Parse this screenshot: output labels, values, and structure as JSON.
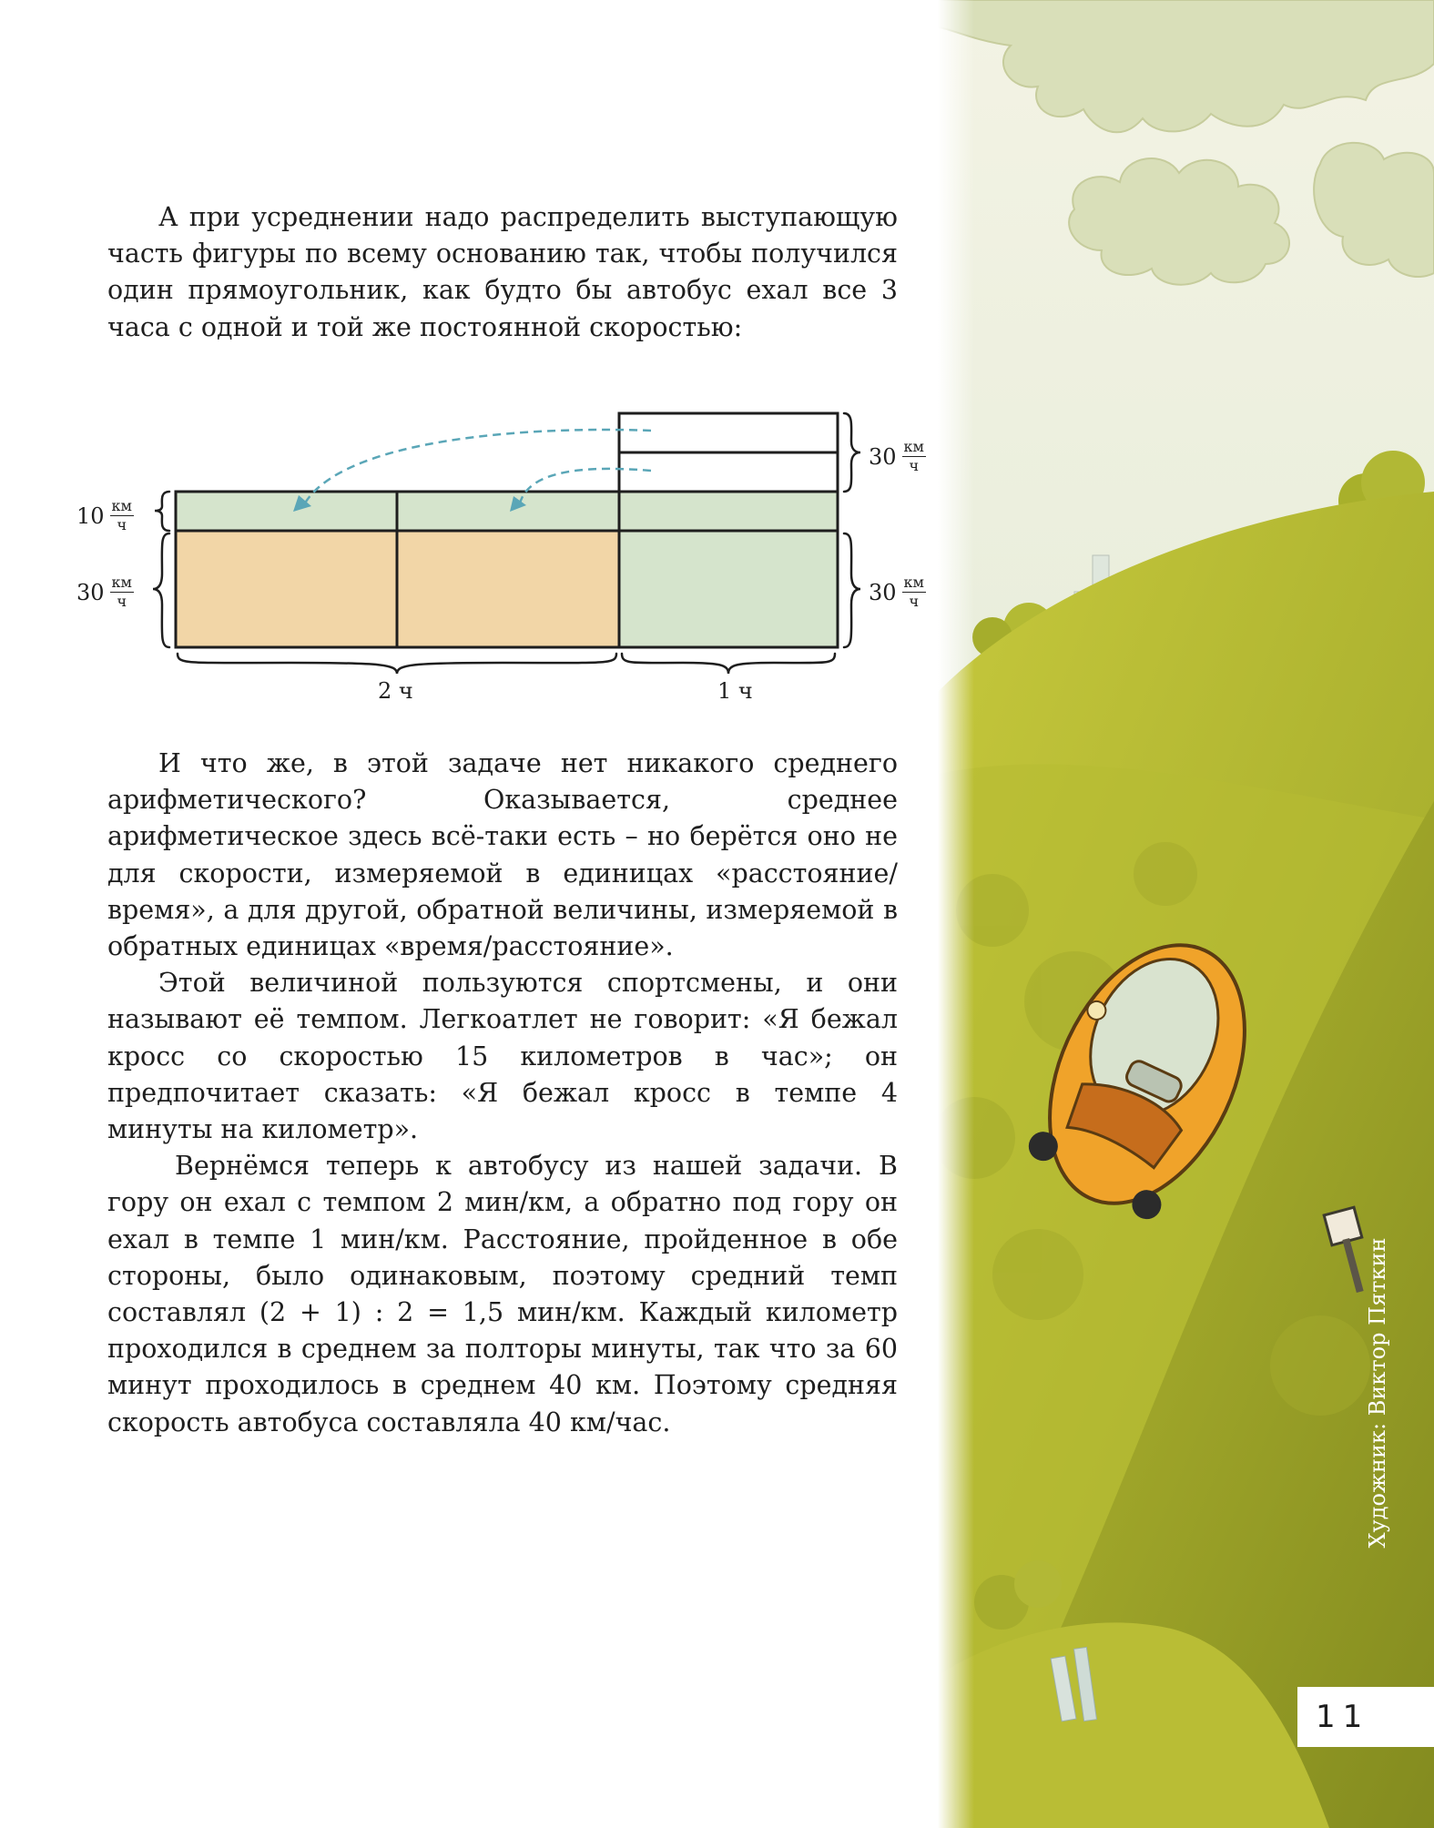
{
  "intro_paragraph": "А при усреднении надо распределить выступающую часть фигуры по всему основанию так, чтобы получился один прямоугольник, как будто бы автобус ехал все 3 часа с одной и той же постоянной скоростью:",
  "diagram": {
    "left_top_label": {
      "value": "10",
      "unit_num": "км",
      "unit_den": "ч"
    },
    "left_bottom_label": {
      "value": "30",
      "unit_num": "км",
      "unit_den": "ч"
    },
    "right_top_label": {
      "value": "30",
      "unit_num": "км",
      "unit_den": "ч"
    },
    "right_bottom_label": {
      "value": "30",
      "unit_num": "км",
      "unit_den": "ч"
    },
    "time_left": "2 ч",
    "time_right": "1 ч",
    "colors": {
      "orange": "#f2d6a7",
      "green": "#d5e4cc",
      "arrow": "#5aa6b7"
    }
  },
  "paragraphs": [
    "И что же, в этой задаче нет никакого среднего арифметического? Оказывается, среднее арифметическое здесь всё-таки есть – но берётся оно не для скорости, измеряемой в единицах «расстояние/время», а для другой, обратной величины, измеряемой в обратных единицах «время/расстояние».",
    "Этой величиной пользуются спортсмены, и они называют её темпом. Легкоатлет не говорит: «Я бежал кросс со скоростью 15 километров в час»; он предпочитает сказать: «Я бежал кросс в темпе 4 минуты на километр».",
    "Вернёмся теперь к автобусу из нашей задачи. В гору он ехал с темпом 2 мин/км, а обратно под гору он ехал в темпе 1 мин/км. Расстояние, пройденное в обе стороны, было одинаковым, поэтому средний темп составлял (2 + 1) : 2 = 1,5 мин/км. Каждый километр проходился в среднем за полторы минуты, так что за 60 минут проходилось в среднем 40 км. Поэтому средняя скорость автобуса составляла 40 км/час."
  ],
  "illustration_credit": "Художник: Виктор Пяткин",
  "page_number": "11"
}
